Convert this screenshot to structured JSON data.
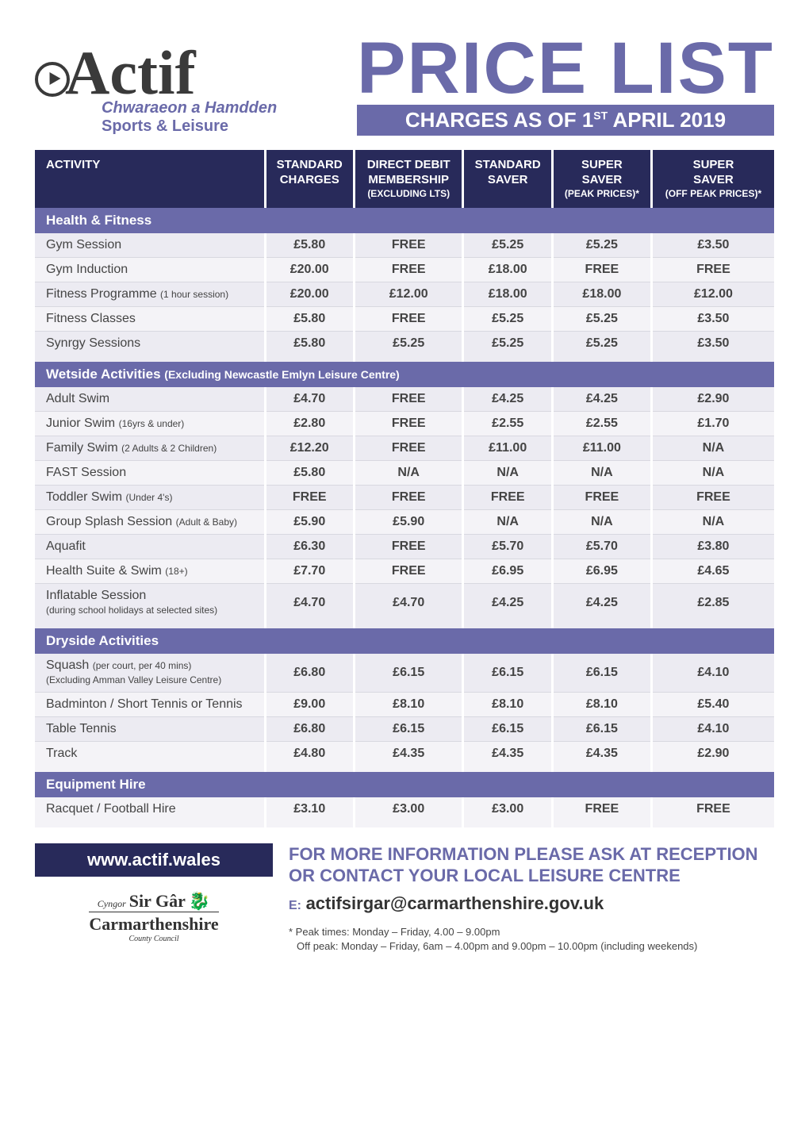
{
  "colors": {
    "dark_navy": "#282a5a",
    "purple": "#6a6aa9",
    "row_odd": "#f4f3f7",
    "row_even": "#ecebf2",
    "text": "#444444",
    "white": "#ffffff"
  },
  "logo": {
    "script": "Actif",
    "sub1": "Chwaraeon a Hamdden",
    "sub2": "Sports & Leisure"
  },
  "title": {
    "main": "PRICE LIST",
    "bar_pre": "CHARGES AS OF 1",
    "bar_sup": "ST",
    "bar_post": " APRIL 2019"
  },
  "columns": [
    {
      "line1": "ACTIVITY"
    },
    {
      "line1": "STANDARD",
      "line2": "CHARGES"
    },
    {
      "line1": "DIRECT DEBIT",
      "line2": "MEMBERSHIP",
      "line3": "(EXCLUDING LTS)"
    },
    {
      "line1": "STANDARD",
      "line2": "SAVER"
    },
    {
      "line1": "SUPER",
      "line2": "SAVER",
      "line3": "(PEAK PRICES)*"
    },
    {
      "line1": "SUPER",
      "line2": "SAVER",
      "line3": "(OFF PEAK PRICES)*"
    }
  ],
  "sections": [
    {
      "title": "Health & Fitness",
      "subtitle": "",
      "rows": [
        {
          "name": "Gym Session",
          "sub": "",
          "v": [
            "£5.80",
            "FREE",
            "£5.25",
            "£5.25",
            "£3.50"
          ]
        },
        {
          "name": "Gym Induction",
          "sub": "",
          "v": [
            "£20.00",
            "FREE",
            "£18.00",
            "FREE",
            "FREE"
          ]
        },
        {
          "name": "Fitness Programme",
          "sub": "(1 hour session)",
          "v": [
            "£20.00",
            "£12.00",
            "£18.00",
            "£18.00",
            "£12.00"
          ]
        },
        {
          "name": "Fitness Classes",
          "sub": "",
          "v": [
            "£5.80",
            "FREE",
            "£5.25",
            "£5.25",
            "£3.50"
          ]
        },
        {
          "name": "Synrgy Sessions",
          "sub": "",
          "v": [
            "£5.80",
            "£5.25",
            "£5.25",
            "£5.25",
            "£3.50"
          ],
          "last": true
        }
      ]
    },
    {
      "title": "Wetside Activities",
      "subtitle": "(Excluding Newcastle Emlyn Leisure Centre)",
      "rows": [
        {
          "name": "Adult Swim",
          "sub": "",
          "v": [
            "£4.70",
            "FREE",
            "£4.25",
            "£4.25",
            "£2.90"
          ]
        },
        {
          "name": "Junior Swim",
          "sub": "(16yrs & under)",
          "v": [
            "£2.80",
            "FREE",
            "£2.55",
            "£2.55",
            "£1.70"
          ]
        },
        {
          "name": "Family Swim",
          "sub": "(2 Adults & 2 Children)",
          "v": [
            "£12.20",
            "FREE",
            "£11.00",
            "£11.00",
            "N/A"
          ]
        },
        {
          "name": "FAST Session",
          "sub": "",
          "v": [
            "£5.80",
            "N/A",
            "N/A",
            "N/A",
            "N/A"
          ]
        },
        {
          "name": "Toddler Swim",
          "sub": "(Under 4's)",
          "v": [
            "FREE",
            "FREE",
            "FREE",
            "FREE",
            "FREE"
          ]
        },
        {
          "name": "Group Splash Session",
          "sub": "(Adult & Baby)",
          "v": [
            "£5.90",
            "£5.90",
            "N/A",
            "N/A",
            "N/A"
          ]
        },
        {
          "name": "Aquafit",
          "sub": "",
          "v": [
            "£6.30",
            "FREE",
            "£5.70",
            "£5.70",
            "£3.80"
          ]
        },
        {
          "name": "Health Suite & Swim",
          "sub": "(18+)",
          "v": [
            "£7.70",
            "FREE",
            "£6.95",
            "£6.95",
            "£4.65"
          ]
        },
        {
          "name": "Inflatable Session",
          "sub2": "(during school holidays at selected sites)",
          "v": [
            "£4.70",
            "£4.70",
            "£4.25",
            "£4.25",
            "£2.85"
          ],
          "last": true
        }
      ]
    },
    {
      "title": "Dryside Activities",
      "subtitle": "",
      "rows": [
        {
          "name": "Squash",
          "sub": "(per court, per 40 mins)",
          "sub2": "(Excluding Amman Valley Leisure Centre)",
          "v": [
            "£6.80",
            "£6.15",
            "£6.15",
            "£6.15",
            "£4.10"
          ]
        },
        {
          "name": "Badminton / Short Tennis or Tennis",
          "sub": "",
          "v": [
            "£9.00",
            "£8.10",
            "£8.10",
            "£8.10",
            "£5.40"
          ]
        },
        {
          "name": "Table Tennis",
          "sub": "",
          "v": [
            "£6.80",
            "£6.15",
            "£6.15",
            "£6.15",
            "£4.10"
          ]
        },
        {
          "name": "Track",
          "sub": "",
          "v": [
            "£4.80",
            "£4.35",
            "£4.35",
            "£4.35",
            "£2.90"
          ],
          "last": true
        }
      ]
    },
    {
      "title": "Equipment Hire",
      "subtitle": "",
      "rows": [
        {
          "name": "Racquet / Football Hire",
          "sub": "",
          "v": [
            "£3.10",
            "£3.00",
            "£3.00",
            "FREE",
            "FREE"
          ],
          "last": true
        }
      ]
    }
  ],
  "footer": {
    "website": "www.actif.wales",
    "council": {
      "cyngor": "Cyngor",
      "sirgar": "Sir Gâr",
      "carm": "Carmarthenshire",
      "cc": "County Council"
    },
    "info_line1": "FOR MORE INFORMATION PLEASE ASK AT RECEPTION",
    "info_line2": "OR CONTACT YOUR LOCAL LEISURE CENTRE",
    "email_label": "E:",
    "email": "actifsirgar@carmarthenshire.gov.uk",
    "footnote1": "* Peak times: Monday – Friday, 4.00 – 9.00pm",
    "footnote2": "Off peak: Monday – Friday, 6am – 4.00pm and 9.00pm – 10.00pm (including weekends)"
  }
}
